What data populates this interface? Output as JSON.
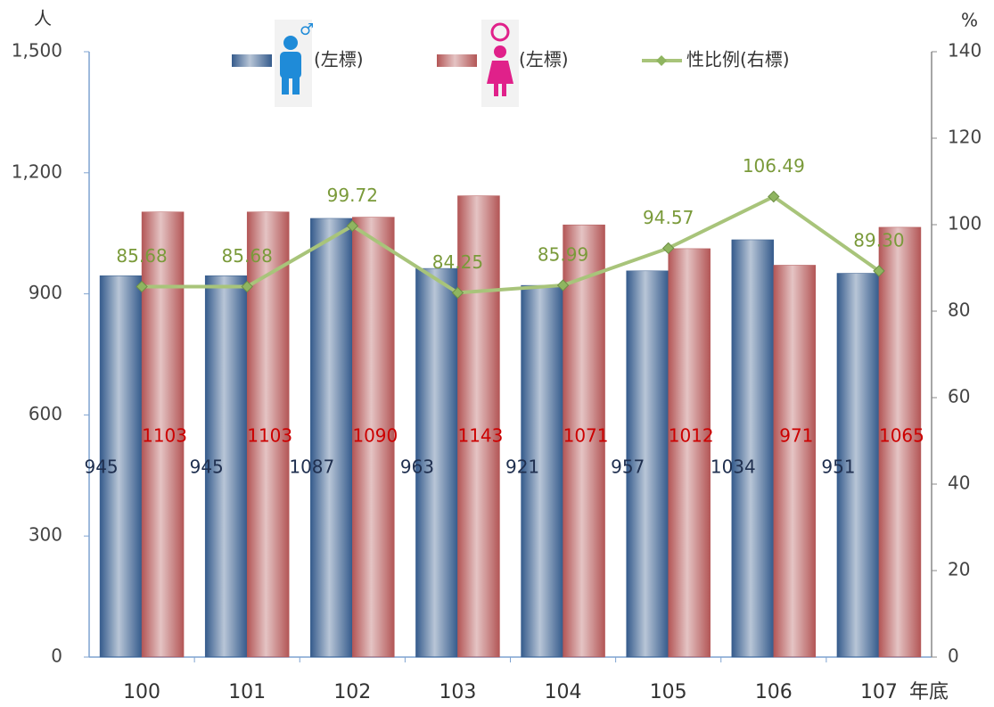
{
  "chart_data": {
    "type": "bar_line",
    "y_label": "人",
    "y2_label": "%",
    "x_label": "年底",
    "categories": [
      "100",
      "101",
      "102",
      "103",
      "104",
      "105",
      "106",
      "107"
    ],
    "series": [
      {
        "name": "(左標)",
        "color": "#355b8c",
        "values": [
          945,
          945,
          1087,
          963,
          921,
          957,
          1034,
          951
        ]
      },
      {
        "name": "(左標)",
        "color": "#b35656",
        "values": [
          1103,
          1103,
          1090,
          1143,
          1071,
          1012,
          971,
          1065
        ]
      },
      {
        "name": "性比例(右標)",
        "color": "#a8c47a",
        "axis": "y2",
        "values": [
          85.68,
          85.68,
          99.72,
          84.25,
          85.99,
          94.57,
          106.49,
          89.3
        ],
        "value_labels": [
          "85.68",
          "85.68",
          "99.72",
          "84.25",
          "85.99",
          "94.57",
          "106.49",
          "89.30"
        ]
      }
    ],
    "ylim": [
      0,
      1500
    ],
    "yticks": [
      0,
      300,
      600,
      900,
      {
        "value": 1200,
        "label": "1,200"
      },
      {
        "value": 1500,
        "label": "1,500"
      }
    ],
    "y2lim": [
      0,
      140
    ],
    "y2ticks": [
      0,
      20,
      40,
      60,
      80,
      100,
      120,
      140
    ]
  }
}
